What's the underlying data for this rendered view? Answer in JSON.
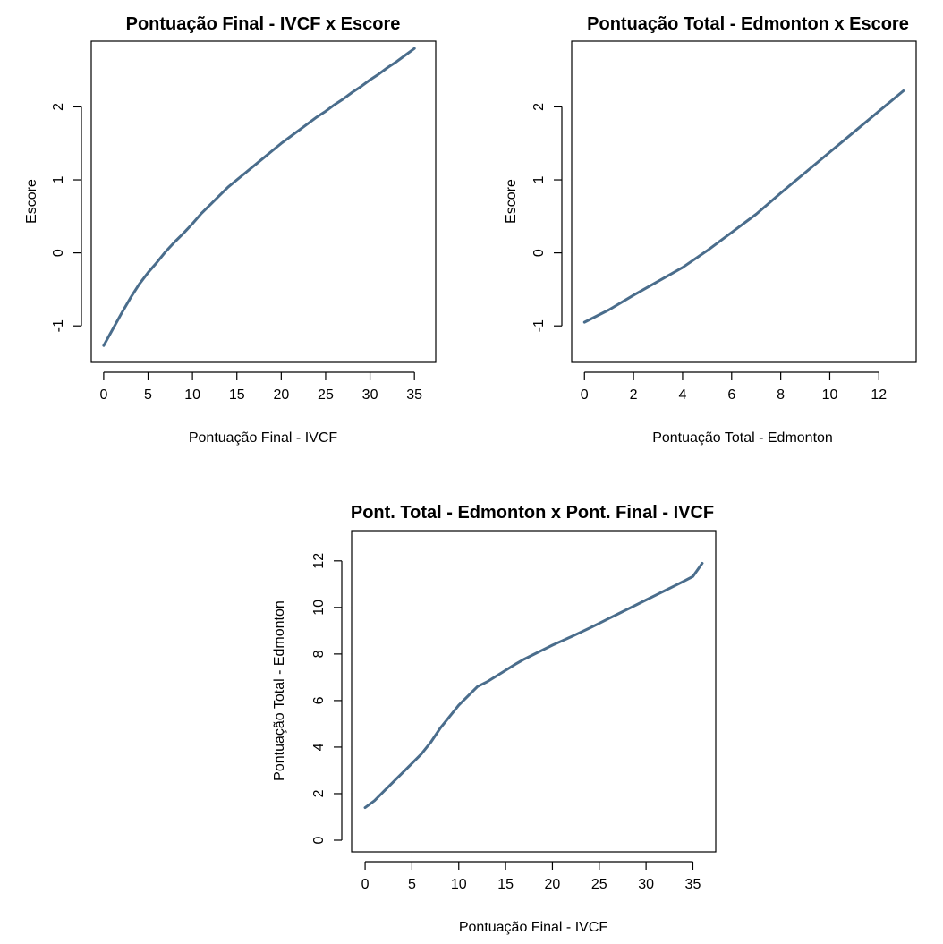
{
  "chart_data": [
    {
      "type": "line",
      "title": "Pontuação Final - IVCF x Escore",
      "xlabel": "Pontuação Final - IVCF",
      "ylabel": "Escore",
      "xlim": [
        -1.4,
        37.4
      ],
      "ylim": [
        -1.5,
        2.9
      ],
      "xticks": [
        0,
        5,
        10,
        15,
        20,
        25,
        30,
        35
      ],
      "yticks": [
        -1,
        0,
        1,
        2
      ],
      "grid": false,
      "series": [
        {
          "color": "#4a6d8c",
          "x": [
            0,
            1,
            2,
            3,
            4,
            5,
            6,
            7,
            8,
            9,
            10,
            11,
            12,
            13,
            14,
            15,
            16,
            17,
            18,
            19,
            20,
            21,
            22,
            23,
            24,
            25,
            26,
            27,
            28,
            29,
            30,
            31,
            32,
            33,
            34,
            35
          ],
          "y": [
            -1.27,
            -1.05,
            -0.83,
            -0.62,
            -0.43,
            -0.27,
            -0.13,
            0.02,
            0.15,
            0.27,
            0.4,
            0.54,
            0.66,
            0.78,
            0.9,
            1.0,
            1.1,
            1.2,
            1.3,
            1.4,
            1.5,
            1.59,
            1.68,
            1.77,
            1.86,
            1.94,
            2.03,
            2.11,
            2.2,
            2.28,
            2.37,
            2.45,
            2.54,
            2.62,
            2.71,
            2.8
          ]
        }
      ]
    },
    {
      "type": "line",
      "title": "Pontuação Total - Edmonton x Escore",
      "xlabel": "Pontuação Total - Edmonton",
      "ylabel": "Escore",
      "xlim": [
        -0.52,
        13.52
      ],
      "ylim": [
        -1.5,
        2.9
      ],
      "xticks": [
        0,
        2,
        4,
        6,
        8,
        10,
        12
      ],
      "yticks": [
        -1,
        0,
        1,
        2
      ],
      "grid": false,
      "series": [
        {
          "color": "#4a6d8c",
          "x": [
            0,
            1,
            2,
            3,
            4,
            5,
            6,
            7,
            8,
            9,
            10,
            11,
            12,
            13
          ],
          "y": [
            -0.95,
            -0.78,
            -0.58,
            -0.39,
            -0.2,
            0.03,
            0.28,
            0.53,
            0.82,
            1.1,
            1.38,
            1.66,
            1.94,
            2.22
          ]
        }
      ]
    },
    {
      "type": "line",
      "title": "Pont. Total - Edmonton x Pont. Final - IVCF",
      "xlabel": "Pontuação Final - IVCF",
      "ylabel": "Pontuação Total - Edmonton",
      "xlim": [
        -1.44,
        37.44
      ],
      "ylim": [
        -0.5,
        13.3
      ],
      "xticks": [
        0,
        5,
        10,
        15,
        20,
        25,
        30,
        35
      ],
      "yticks": [
        0,
        2,
        4,
        6,
        8,
        10,
        12
      ],
      "grid": false,
      "series": [
        {
          "color": "#4a6d8c",
          "x": [
            0,
            1,
            2,
            3,
            4,
            5,
            6,
            7,
            8,
            9,
            10,
            11,
            12,
            13,
            14,
            15,
            16,
            17,
            18,
            19,
            20,
            21,
            22,
            23,
            24,
            25,
            26,
            27,
            28,
            29,
            30,
            31,
            32,
            33,
            34,
            35,
            36
          ],
          "y": [
            1.4,
            1.7,
            2.1,
            2.5,
            2.9,
            3.3,
            3.7,
            4.2,
            4.8,
            5.3,
            5.8,
            6.2,
            6.6,
            6.8,
            7.05,
            7.3,
            7.55,
            7.78,
            7.98,
            8.18,
            8.38,
            8.56,
            8.74,
            8.93,
            9.12,
            9.32,
            9.52,
            9.72,
            9.92,
            10.12,
            10.32,
            10.52,
            10.72,
            10.92,
            11.12,
            11.33,
            11.9
          ]
        }
      ]
    }
  ]
}
